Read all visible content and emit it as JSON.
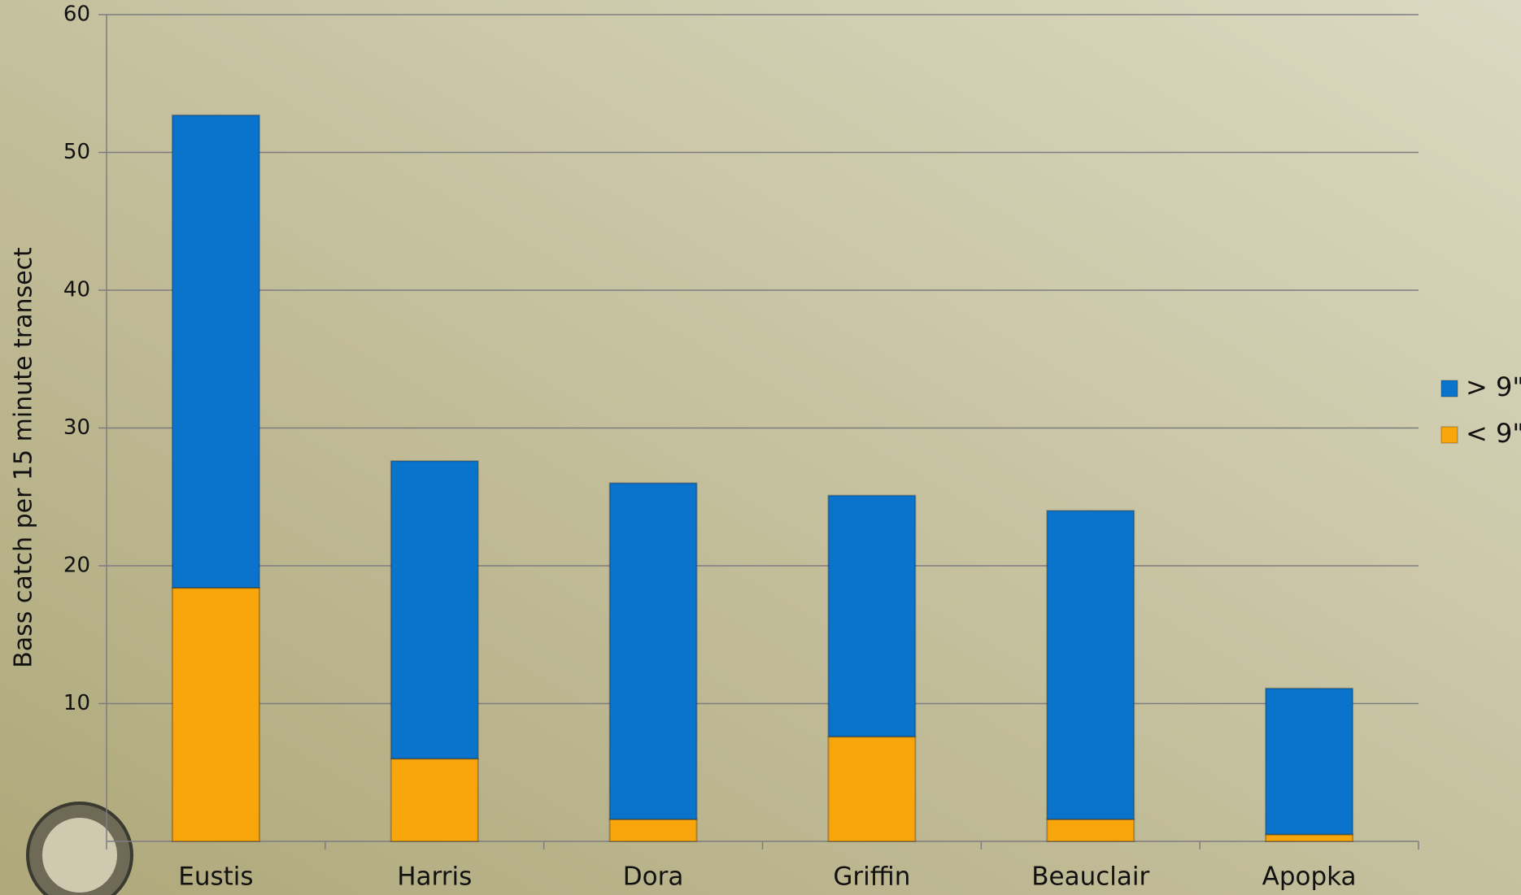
{
  "chart_data": {
    "type": "bar",
    "stacked": true,
    "y_label": "Bass catch per 15 minute transect",
    "categories": [
      "Eustis",
      "Harris",
      "Dora",
      "Griffin",
      "Beauclair",
      "Apopka"
    ],
    "series": [
      {
        "name": "> 9\"",
        "color": "#0a74cc",
        "values": [
          34.3,
          21.6,
          24.4,
          17.5,
          22.4,
          10.6
        ]
      },
      {
        "name": "< 9\"",
        "color": "#f9a50c",
        "values": [
          18.4,
          6.0,
          1.6,
          7.6,
          1.6,
          0.5
        ]
      }
    ],
    "ylim": [
      0,
      60
    ],
    "yticks": [
      10,
      20,
      30,
      40,
      50,
      60
    ],
    "grid": true,
    "legend": "right"
  }
}
